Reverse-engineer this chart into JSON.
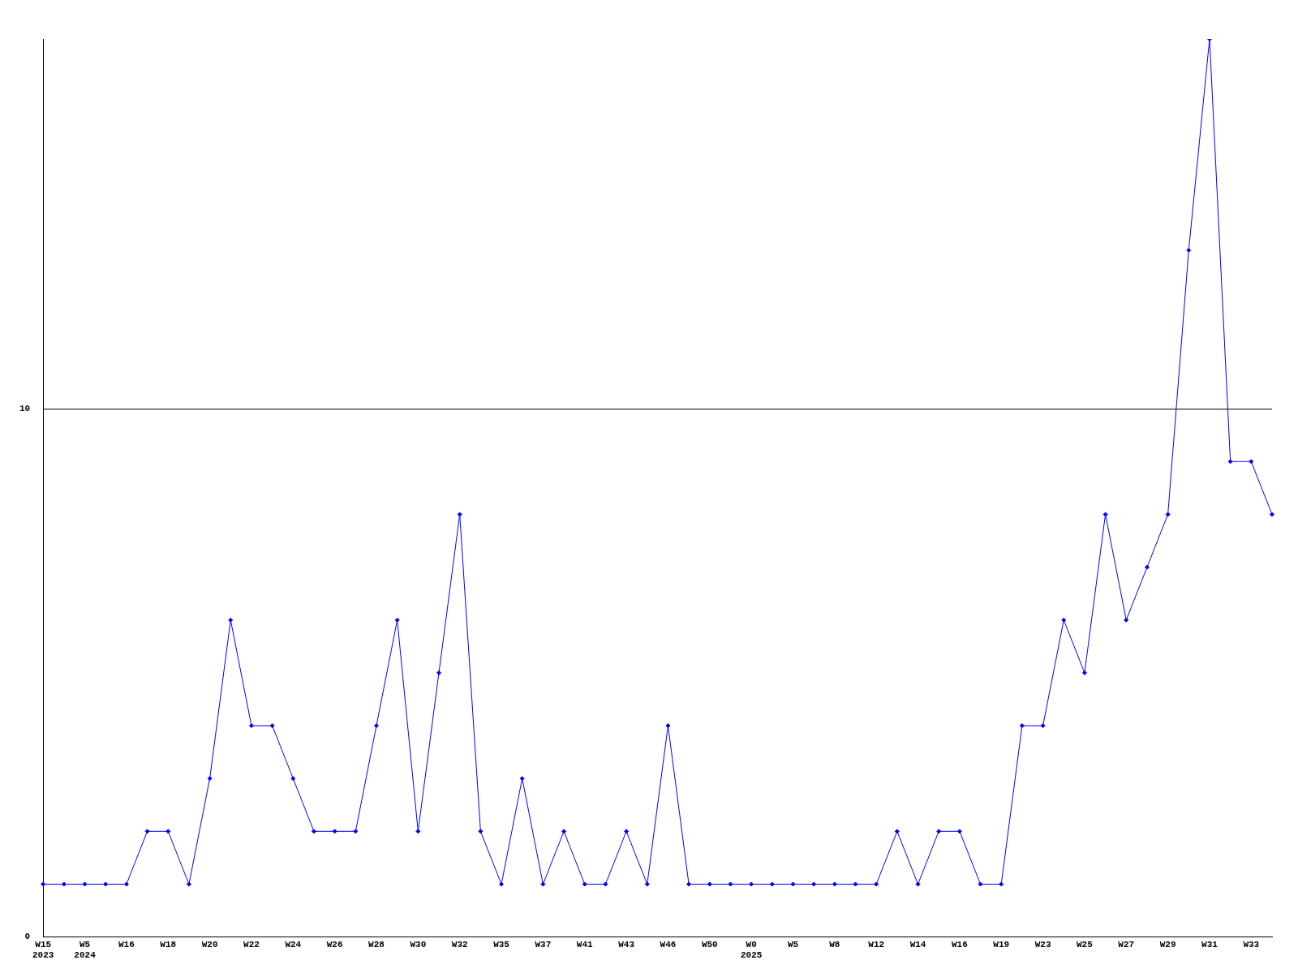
{
  "chart_data": {
    "type": "line",
    "categories": [
      "W15\n2023",
      null,
      "W5\n2024",
      null,
      "W16",
      null,
      "W18",
      null,
      "W20",
      null,
      "W22",
      null,
      "W24",
      null,
      "W26",
      null,
      "W28",
      null,
      "W30",
      null,
      "W32",
      null,
      "W35",
      null,
      "W37",
      null,
      "W41",
      null,
      "W43",
      null,
      "W46",
      null,
      "W50",
      null,
      "W0\n2025",
      null,
      "W5",
      null,
      "W8",
      null,
      "W12",
      null,
      "W14",
      null,
      "W16",
      null,
      "W19",
      null,
      "W23",
      null,
      "W25",
      null,
      "W27",
      null,
      "W29",
      null,
      "W31",
      null,
      "W33",
      null
    ],
    "series": [
      {
        "color": "#0000ff",
        "values": [
          1,
          1,
          1,
          1,
          1,
          2,
          2,
          1,
          3,
          6,
          4,
          4,
          3,
          2,
          2,
          2,
          4,
          6,
          2,
          5,
          8,
          2,
          1,
          3,
          1,
          2,
          1,
          1,
          2,
          1,
          4,
          1,
          1,
          1,
          1,
          1,
          1,
          1,
          1,
          1,
          1,
          2,
          1,
          2,
          2,
          1,
          1,
          4,
          4,
          6,
          5,
          8,
          6,
          7,
          8,
          13,
          17,
          9,
          9,
          8
        ]
      }
    ],
    "ylim": [
      0,
      17
    ],
    "yticks": [
      0,
      10
    ],
    "grid": "y",
    "legend": false,
    "marker": "diamond",
    "line_style": "solid"
  }
}
